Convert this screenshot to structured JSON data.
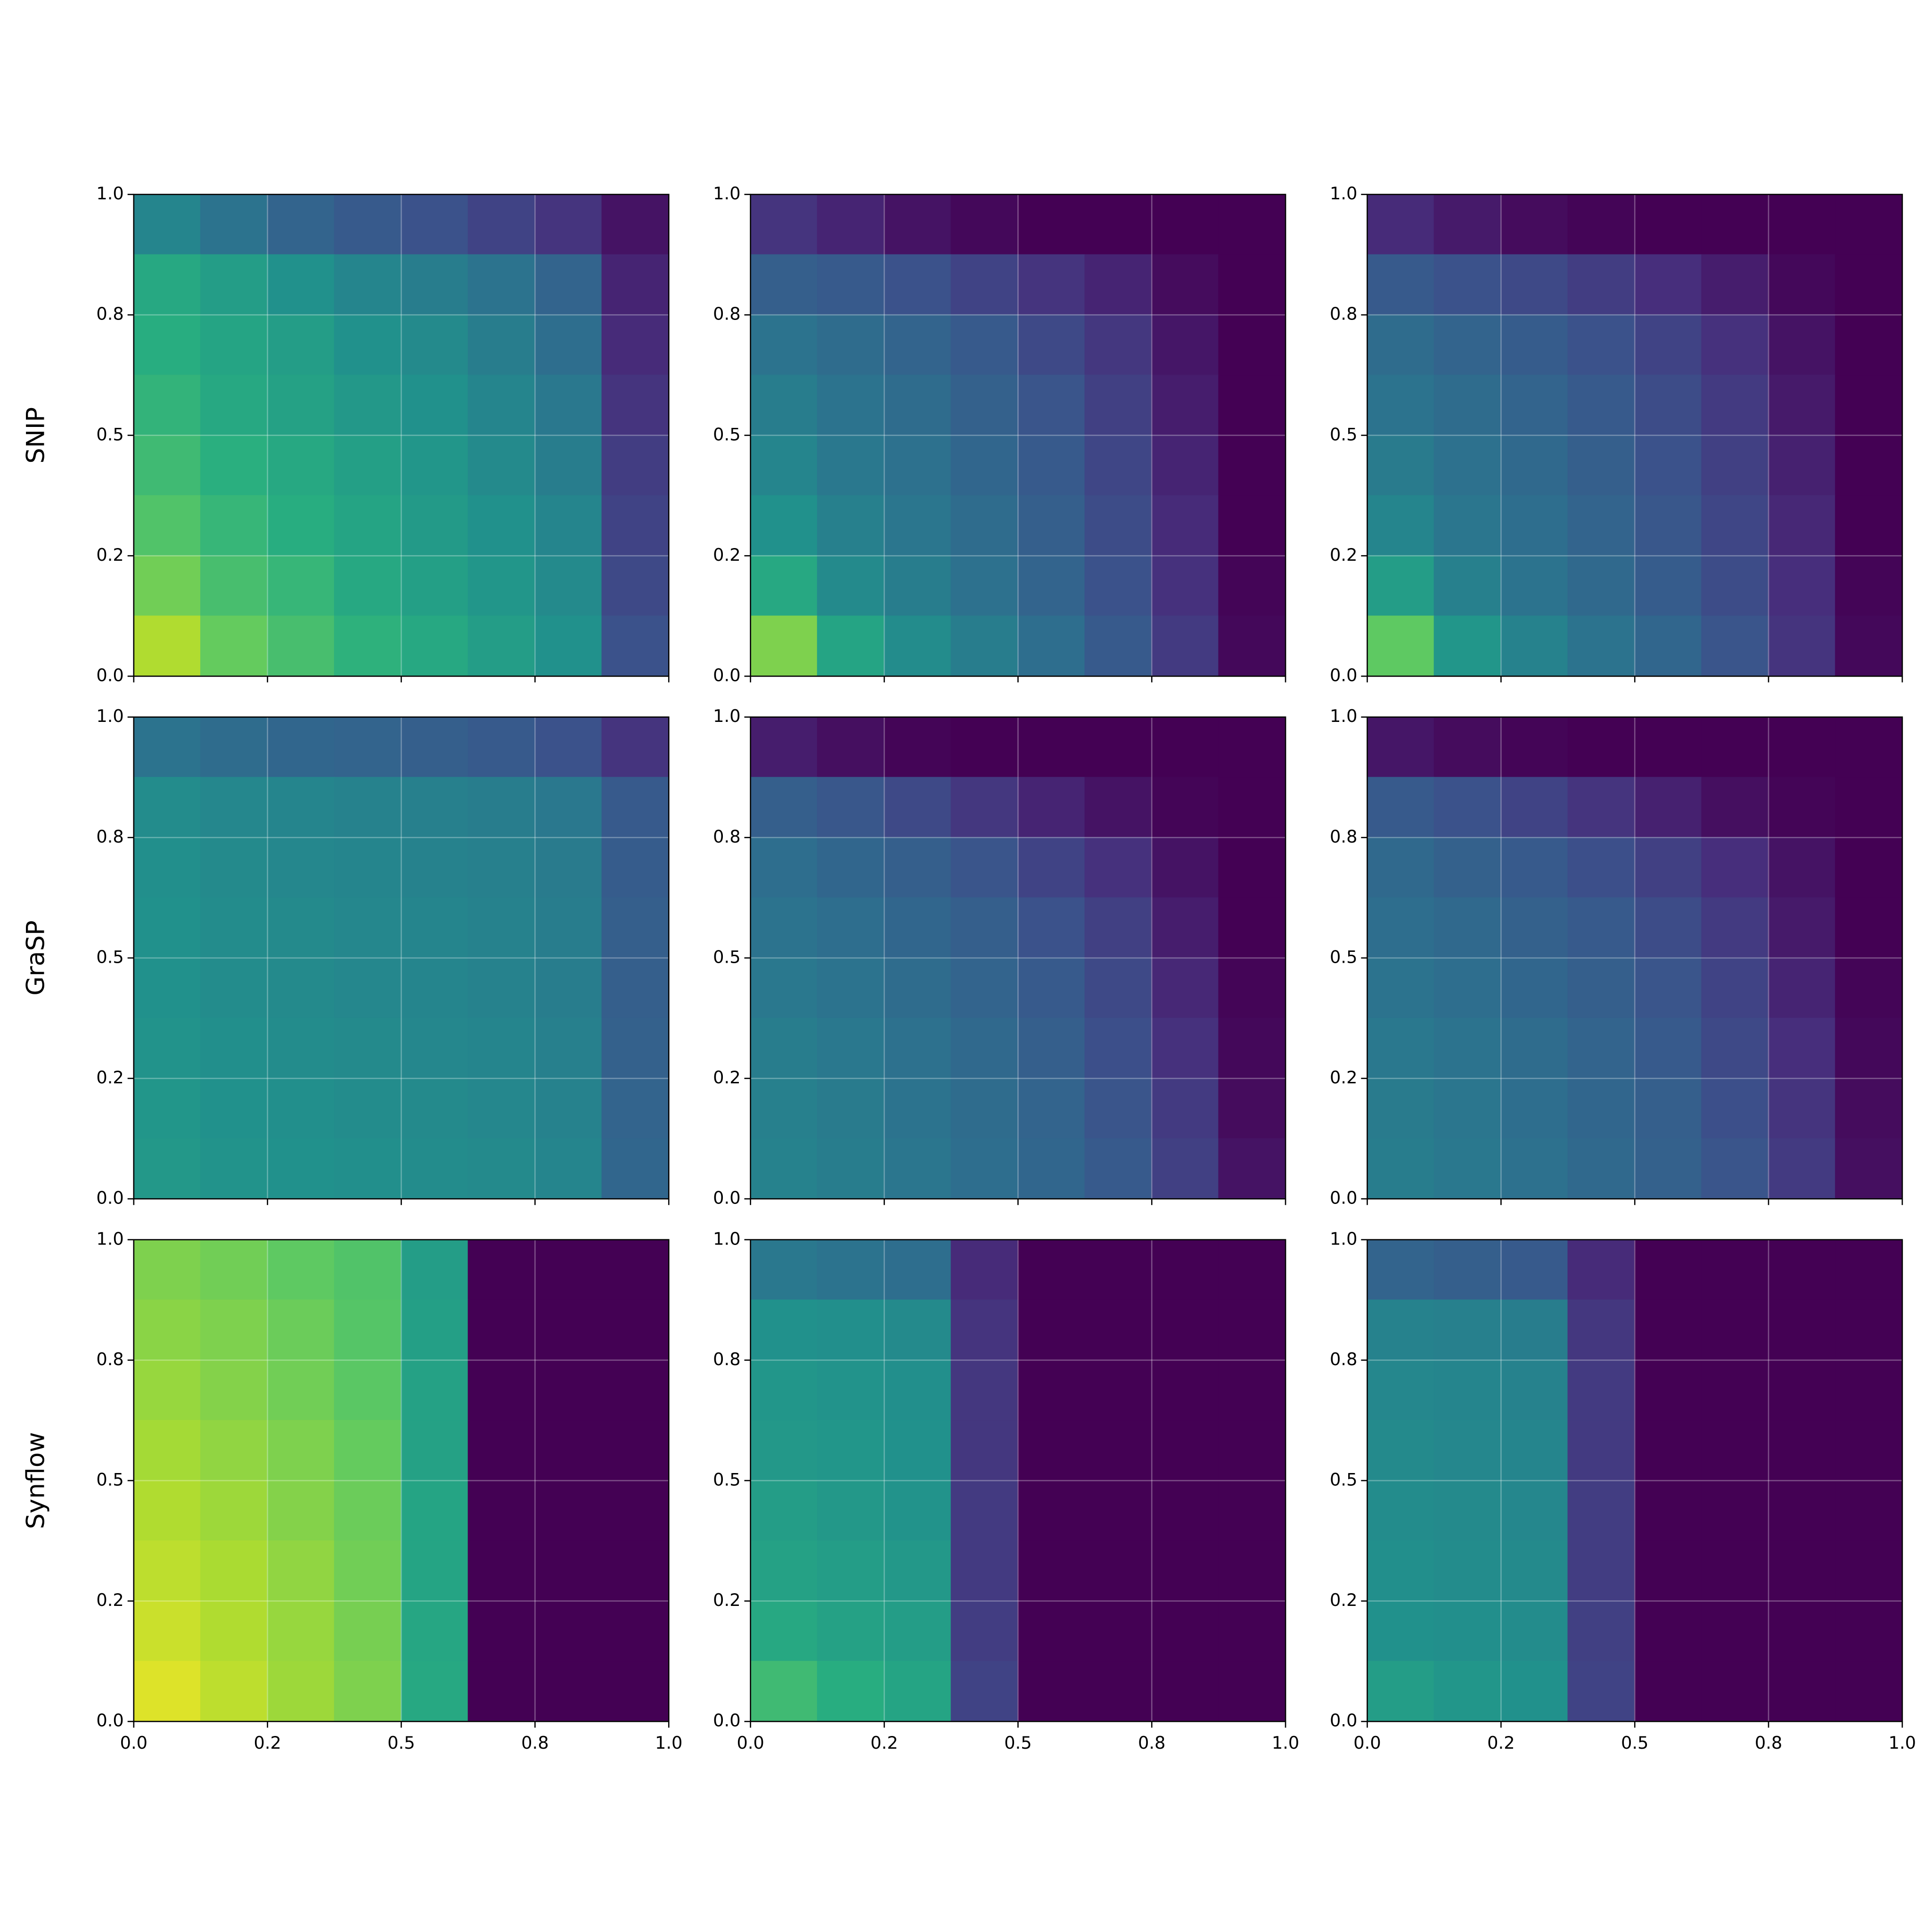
{
  "chart_data": [
    {
      "type": "heatmap",
      "ylabel": "SNIP",
      "xlim": [
        0,
        1
      ],
      "ylim": [
        0,
        1
      ],
      "grid": true,
      "yticks": [
        {
          "value": 0,
          "label": "0.0"
        },
        {
          "value": 0.25,
          "label": "0.2"
        },
        {
          "value": 0.5,
          "label": "0.5"
        },
        {
          "value": 0.75,
          "label": "0.8"
        },
        {
          "value": 1,
          "label": "1.0"
        }
      ],
      "z": [
        [
          0.45,
          0.38,
          0.32,
          0.28,
          0.25,
          0.2,
          0.15,
          0.05
        ],
        [
          0.6,
          0.55,
          0.5,
          0.45,
          0.42,
          0.38,
          0.32,
          0.1
        ],
        [
          0.62,
          0.58,
          0.55,
          0.5,
          0.47,
          0.42,
          0.36,
          0.12
        ],
        [
          0.65,
          0.6,
          0.57,
          0.53,
          0.5,
          0.45,
          0.4,
          0.15
        ],
        [
          0.68,
          0.63,
          0.6,
          0.56,
          0.52,
          0.47,
          0.42,
          0.18
        ],
        [
          0.72,
          0.66,
          0.62,
          0.58,
          0.54,
          0.5,
          0.45,
          0.2
        ],
        [
          0.78,
          0.7,
          0.66,
          0.6,
          0.56,
          0.52,
          0.47,
          0.22
        ],
        [
          0.88,
          0.76,
          0.7,
          0.64,
          0.6,
          0.55,
          0.5,
          0.25
        ]
      ]
    },
    {
      "type": "heatmap",
      "xlim": [
        0,
        1
      ],
      "ylim": [
        0,
        1
      ],
      "grid": true,
      "yticks": [
        {
          "value": 0,
          "label": "0.0"
        },
        {
          "value": 0.25,
          "label": "0.2"
        },
        {
          "value": 0.5,
          "label": "0.5"
        },
        {
          "value": 0.75,
          "label": "0.8"
        },
        {
          "value": 1,
          "label": "1.0"
        }
      ],
      "z": [
        [
          0.15,
          0.1,
          0.05,
          0.02,
          0,
          0,
          0,
          0
        ],
        [
          0.3,
          0.28,
          0.25,
          0.2,
          0.15,
          0.1,
          0.03,
          0
        ],
        [
          0.38,
          0.35,
          0.32,
          0.28,
          0.22,
          0.16,
          0.06,
          0
        ],
        [
          0.42,
          0.38,
          0.35,
          0.31,
          0.26,
          0.19,
          0.08,
          0
        ],
        [
          0.45,
          0.4,
          0.37,
          0.33,
          0.28,
          0.21,
          0.1,
          0
        ],
        [
          0.5,
          0.43,
          0.39,
          0.35,
          0.3,
          0.23,
          0.12,
          0
        ],
        [
          0.6,
          0.47,
          0.42,
          0.37,
          0.32,
          0.25,
          0.14,
          0.01
        ],
        [
          0.8,
          0.58,
          0.48,
          0.42,
          0.36,
          0.28,
          0.17,
          0.02
        ]
      ]
    },
    {
      "type": "heatmap",
      "xlim": [
        0,
        1
      ],
      "ylim": [
        0,
        1
      ],
      "grid": true,
      "yticks": [
        {
          "value": 0,
          "label": "0.0"
        },
        {
          "value": 0.25,
          "label": "0.2"
        },
        {
          "value": 0.5,
          "label": "0.5"
        },
        {
          "value": 0.75,
          "label": "0.8"
        },
        {
          "value": 1,
          "label": "1.0"
        }
      ],
      "z": [
        [
          0.12,
          0.07,
          0.03,
          0.01,
          0,
          0,
          0,
          0
        ],
        [
          0.28,
          0.25,
          0.22,
          0.18,
          0.13,
          0.08,
          0.02,
          0
        ],
        [
          0.35,
          0.32,
          0.29,
          0.25,
          0.2,
          0.14,
          0.05,
          0
        ],
        [
          0.38,
          0.35,
          0.32,
          0.28,
          0.23,
          0.17,
          0.07,
          0
        ],
        [
          0.41,
          0.37,
          0.34,
          0.3,
          0.25,
          0.19,
          0.09,
          0
        ],
        [
          0.45,
          0.39,
          0.36,
          0.32,
          0.27,
          0.21,
          0.11,
          0
        ],
        [
          0.55,
          0.43,
          0.38,
          0.34,
          0.29,
          0.23,
          0.13,
          0.01
        ],
        [
          0.75,
          0.52,
          0.44,
          0.38,
          0.33,
          0.26,
          0.15,
          0.02
        ]
      ]
    },
    {
      "type": "heatmap",
      "ylabel": "GraSP",
      "xlim": [
        0,
        1
      ],
      "ylim": [
        0,
        1
      ],
      "grid": true,
      "yticks": [
        {
          "value": 0,
          "label": "0.0"
        },
        {
          "value": 0.25,
          "label": "0.2"
        },
        {
          "value": 0.5,
          "label": "0.5"
        },
        {
          "value": 0.75,
          "label": "0.8"
        },
        {
          "value": 1,
          "label": "1.0"
        }
      ],
      "z": [
        [
          0.38,
          0.35,
          0.33,
          0.32,
          0.3,
          0.28,
          0.25,
          0.15
        ],
        [
          0.48,
          0.46,
          0.45,
          0.44,
          0.43,
          0.42,
          0.4,
          0.28
        ],
        [
          0.49,
          0.47,
          0.46,
          0.45,
          0.44,
          0.43,
          0.41,
          0.29
        ],
        [
          0.5,
          0.48,
          0.47,
          0.46,
          0.45,
          0.44,
          0.42,
          0.3
        ],
        [
          0.5,
          0.48,
          0.47,
          0.46,
          0.45,
          0.44,
          0.42,
          0.3
        ],
        [
          0.51,
          0.49,
          0.48,
          0.47,
          0.46,
          0.45,
          0.43,
          0.31
        ],
        [
          0.52,
          0.5,
          0.49,
          0.48,
          0.47,
          0.46,
          0.44,
          0.32
        ],
        [
          0.53,
          0.51,
          0.5,
          0.49,
          0.48,
          0.47,
          0.45,
          0.33
        ]
      ]
    },
    {
      "type": "heatmap",
      "xlim": [
        0,
        1
      ],
      "ylim": [
        0,
        1
      ],
      "grid": true,
      "yticks": [
        {
          "value": 0,
          "label": "0.0"
        },
        {
          "value": 0.25,
          "label": "0.2"
        },
        {
          "value": 0.5,
          "label": "0.5"
        },
        {
          "value": 0.75,
          "label": "0.8"
        },
        {
          "value": 1,
          "label": "1.0"
        }
      ],
      "z": [
        [
          0.08,
          0.04,
          0.01,
          0,
          0,
          0,
          0,
          0
        ],
        [
          0.3,
          0.27,
          0.22,
          0.16,
          0.1,
          0.05,
          0.01,
          0
        ],
        [
          0.36,
          0.33,
          0.3,
          0.26,
          0.2,
          0.14,
          0.05,
          0
        ],
        [
          0.38,
          0.36,
          0.33,
          0.3,
          0.25,
          0.19,
          0.08,
          0
        ],
        [
          0.4,
          0.38,
          0.35,
          0.32,
          0.28,
          0.22,
          0.11,
          0.01
        ],
        [
          0.42,
          0.4,
          0.37,
          0.34,
          0.3,
          0.24,
          0.14,
          0.02
        ],
        [
          0.43,
          0.41,
          0.38,
          0.35,
          0.32,
          0.26,
          0.17,
          0.03
        ],
        [
          0.44,
          0.42,
          0.39,
          0.36,
          0.33,
          0.28,
          0.19,
          0.05
        ]
      ]
    },
    {
      "type": "heatmap",
      "xlim": [
        0,
        1
      ],
      "ylim": [
        0,
        1
      ],
      "grid": true,
      "yticks": [
        {
          "value": 0,
          "label": "0.0"
        },
        {
          "value": 0.25,
          "label": "0.2"
        },
        {
          "value": 0.5,
          "label": "0.5"
        },
        {
          "value": 0.75,
          "label": "0.8"
        },
        {
          "value": 1,
          "label": "1.0"
        }
      ],
      "z": [
        [
          0.06,
          0.03,
          0.01,
          0,
          0,
          0,
          0,
          0
        ],
        [
          0.28,
          0.25,
          0.2,
          0.15,
          0.09,
          0.04,
          0.01,
          0
        ],
        [
          0.34,
          0.31,
          0.28,
          0.24,
          0.19,
          0.13,
          0.05,
          0
        ],
        [
          0.36,
          0.34,
          0.31,
          0.28,
          0.23,
          0.17,
          0.07,
          0
        ],
        [
          0.38,
          0.36,
          0.33,
          0.3,
          0.26,
          0.2,
          0.1,
          0.01
        ],
        [
          0.4,
          0.38,
          0.35,
          0.32,
          0.28,
          0.22,
          0.13,
          0.02
        ],
        [
          0.41,
          0.39,
          0.36,
          0.33,
          0.3,
          0.24,
          0.15,
          0.03
        ],
        [
          0.42,
          0.4,
          0.37,
          0.34,
          0.31,
          0.26,
          0.17,
          0.04
        ]
      ]
    },
    {
      "type": "heatmap",
      "ylabel": "Synflow",
      "xlim": [
        0,
        1
      ],
      "ylim": [
        0,
        1
      ],
      "grid": true,
      "xticks": [
        {
          "value": 0,
          "label": "0.0"
        },
        {
          "value": 0.25,
          "label": "0.2"
        },
        {
          "value": 0.5,
          "label": "0.5"
        },
        {
          "value": 0.75,
          "label": "0.8"
        },
        {
          "value": 1,
          "label": "1.0"
        }
      ],
      "yticks": [
        {
          "value": 0,
          "label": "0.0"
        },
        {
          "value": 0.25,
          "label": "0.2"
        },
        {
          "value": 0.5,
          "label": "0.5"
        },
        {
          "value": 0.75,
          "label": "0.8"
        },
        {
          "value": 1,
          "label": "1.0"
        }
      ],
      "z": [
        [
          0.8,
          0.78,
          0.75,
          0.72,
          0.55,
          0,
          0,
          0
        ],
        [
          0.82,
          0.8,
          0.77,
          0.73,
          0.56,
          0,
          0,
          0
        ],
        [
          0.84,
          0.81,
          0.78,
          0.74,
          0.57,
          0,
          0,
          0
        ],
        [
          0.86,
          0.83,
          0.8,
          0.76,
          0.57,
          0,
          0,
          0
        ],
        [
          0.88,
          0.85,
          0.81,
          0.77,
          0.58,
          0,
          0,
          0
        ],
        [
          0.9,
          0.87,
          0.83,
          0.78,
          0.58,
          0,
          0,
          0
        ],
        [
          0.92,
          0.88,
          0.84,
          0.79,
          0.59,
          0,
          0,
          0
        ],
        [
          0.95,
          0.9,
          0.85,
          0.8,
          0.6,
          0,
          0,
          0
        ]
      ]
    },
    {
      "type": "heatmap",
      "xlim": [
        0,
        1
      ],
      "ylim": [
        0,
        1
      ],
      "grid": true,
      "xticks": [
        {
          "value": 0,
          "label": "0.0"
        },
        {
          "value": 0.25,
          "label": "0.2"
        },
        {
          "value": 0.5,
          "label": "0.5"
        },
        {
          "value": 0.75,
          "label": "0.8"
        },
        {
          "value": 1,
          "label": "1.0"
        }
      ],
      "yticks": [
        {
          "value": 0,
          "label": "0.0"
        },
        {
          "value": 0.25,
          "label": "0.2"
        },
        {
          "value": 0.5,
          "label": "0.5"
        },
        {
          "value": 0.75,
          "label": "0.8"
        },
        {
          "value": 1,
          "label": "1.0"
        }
      ],
      "z": [
        [
          0.4,
          0.38,
          0.36,
          0.12,
          0,
          0,
          0,
          0
        ],
        [
          0.5,
          0.49,
          0.47,
          0.15,
          0,
          0,
          0,
          0
        ],
        [
          0.52,
          0.51,
          0.49,
          0.16,
          0,
          0,
          0,
          0
        ],
        [
          0.53,
          0.52,
          0.5,
          0.16,
          0,
          0,
          0,
          0
        ],
        [
          0.55,
          0.53,
          0.51,
          0.17,
          0,
          0,
          0,
          0
        ],
        [
          0.57,
          0.55,
          0.53,
          0.17,
          0,
          0,
          0,
          0
        ],
        [
          0.6,
          0.57,
          0.55,
          0.18,
          0,
          0,
          0,
          0
        ],
        [
          0.68,
          0.62,
          0.58,
          0.2,
          0,
          0,
          0,
          0
        ]
      ]
    },
    {
      "type": "heatmap",
      "xlim": [
        0,
        1
      ],
      "ylim": [
        0,
        1
      ],
      "grid": true,
      "xticks": [
        {
          "value": 0,
          "label": "0.0"
        },
        {
          "value": 0.25,
          "label": "0.2"
        },
        {
          "value": 0.5,
          "label": "0.5"
        },
        {
          "value": 0.75,
          "label": "0.8"
        },
        {
          "value": 1,
          "label": "1.0"
        }
      ],
      "yticks": [
        {
          "value": 0,
          "label": "0.0"
        },
        {
          "value": 0.25,
          "label": "0.2"
        },
        {
          "value": 0.5,
          "label": "0.5"
        },
        {
          "value": 0.75,
          "label": "0.8"
        },
        {
          "value": 1,
          "label": "1.0"
        }
      ],
      "z": [
        [
          0.32,
          0.3,
          0.28,
          0.12,
          0,
          0,
          0,
          0
        ],
        [
          0.44,
          0.43,
          0.42,
          0.16,
          0,
          0,
          0,
          0
        ],
        [
          0.46,
          0.45,
          0.44,
          0.17,
          0,
          0,
          0,
          0
        ],
        [
          0.47,
          0.46,
          0.45,
          0.17,
          0,
          0,
          0,
          0
        ],
        [
          0.48,
          0.47,
          0.46,
          0.18,
          0,
          0,
          0,
          0
        ],
        [
          0.49,
          0.48,
          0.47,
          0.18,
          0,
          0,
          0,
          0
        ],
        [
          0.5,
          0.49,
          0.48,
          0.19,
          0,
          0,
          0,
          0
        ],
        [
          0.55,
          0.52,
          0.5,
          0.2,
          0,
          0,
          0,
          0
        ]
      ]
    }
  ]
}
